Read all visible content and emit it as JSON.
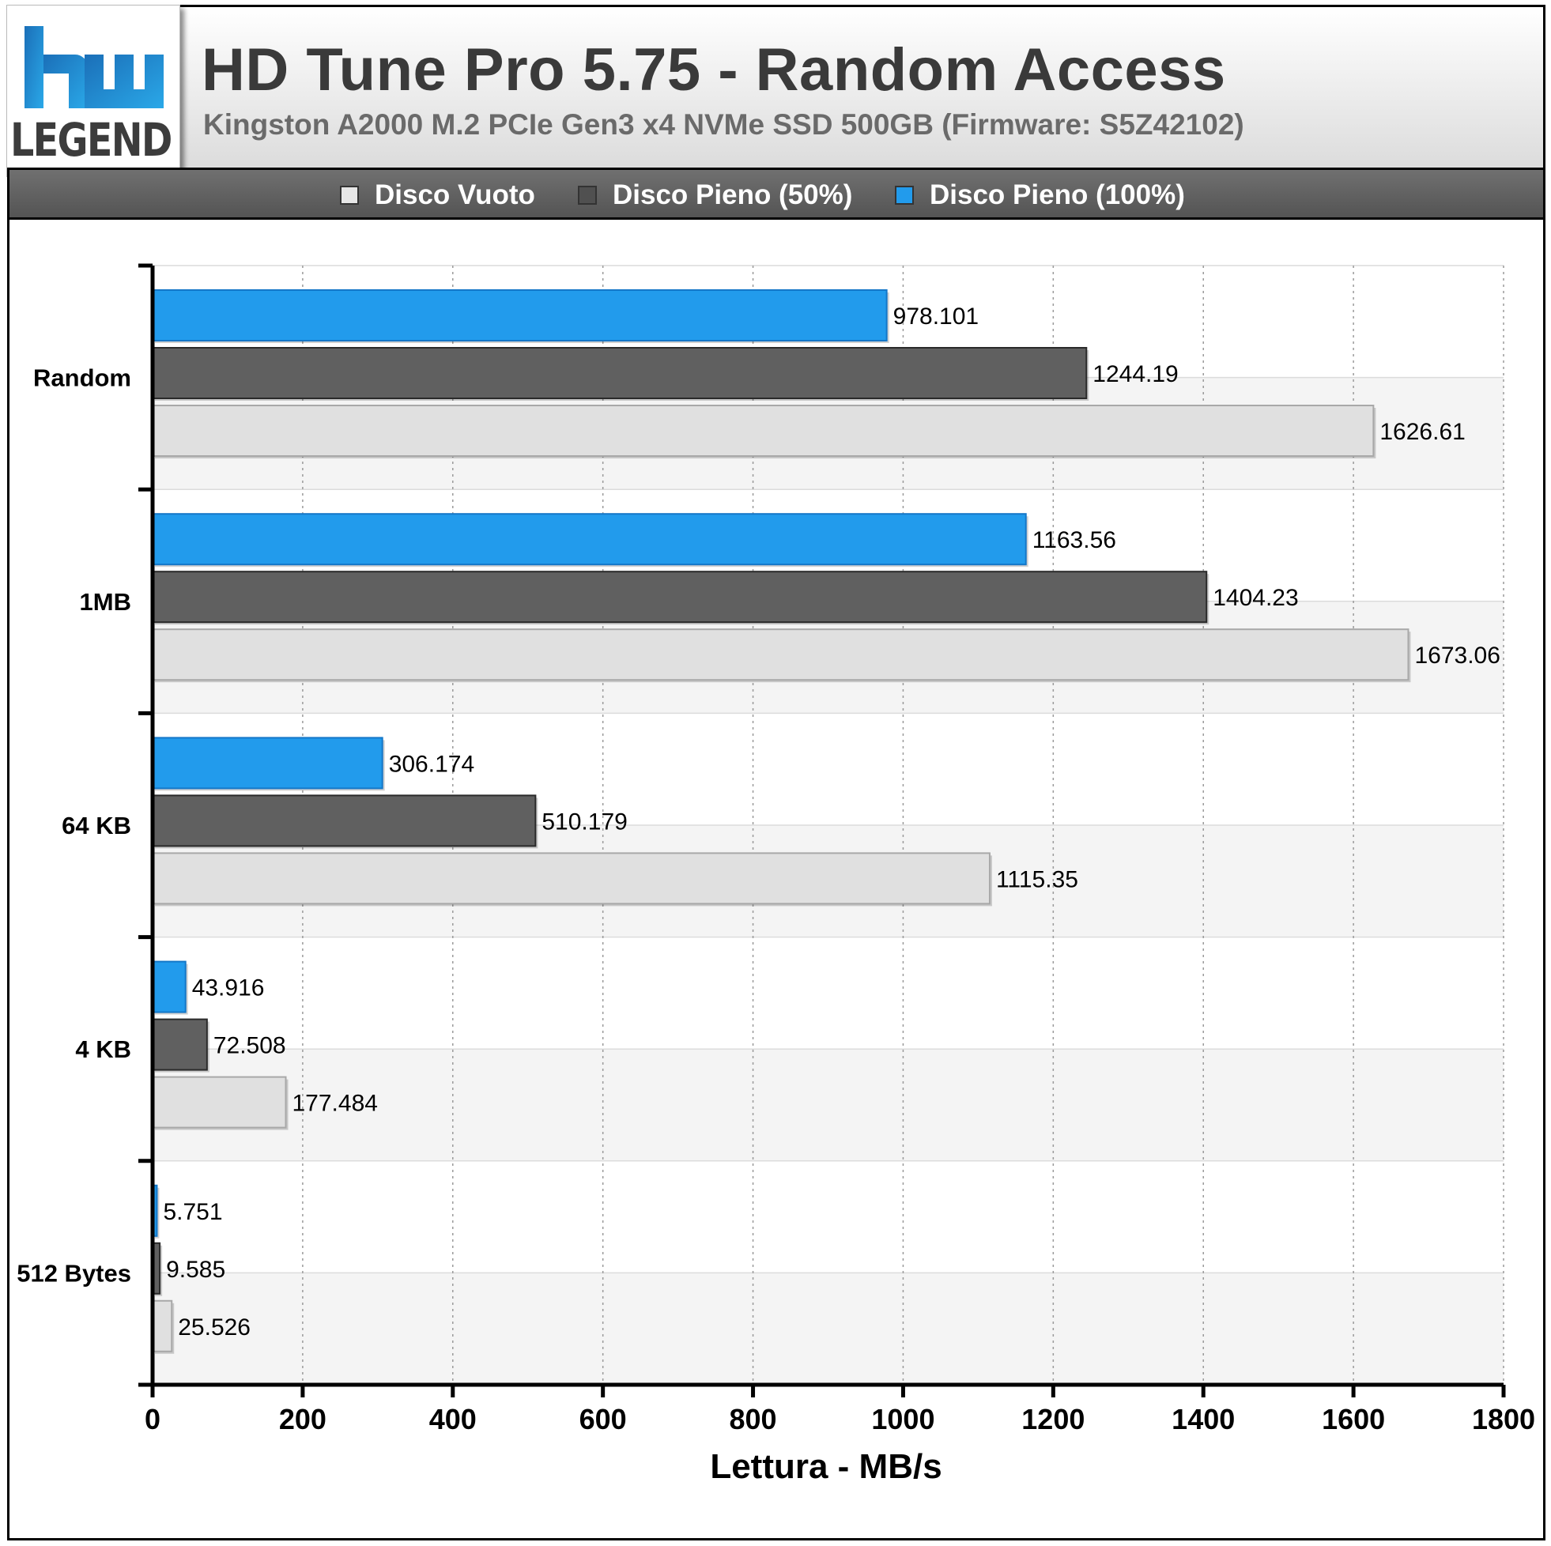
{
  "header": {
    "title": "HD Tune Pro 5.75 - Random Access",
    "subtitle": "Kingston A2000 M.2 PCIe Gen3 x4 NVMe SSD 500GB (Firmware: S5Z42102)",
    "logo_text": "LEGEND"
  },
  "legend": {
    "items": [
      {
        "label": "Disco Vuoto",
        "color": "#e0e0e0"
      },
      {
        "label": "Disco Pieno (50%)",
        "color": "#606060"
      },
      {
        "label": "Disco Pieno (100%)",
        "color": "#229bec"
      }
    ]
  },
  "chart_data": {
    "type": "bar",
    "orientation": "horizontal",
    "title": "HD Tune Pro 5.75 - Random Access",
    "subtitle": "Kingston A2000 M.2 PCIe Gen3 x4 NVMe SSD 500GB (Firmware: S5Z42102)",
    "xlabel": "Lettura - MB/s",
    "ylabel": "",
    "xlim": [
      0,
      1800
    ],
    "xticks": [
      0,
      200,
      400,
      600,
      800,
      1000,
      1200,
      1400,
      1600,
      1800
    ],
    "grid": true,
    "legend_position": "top",
    "categories": [
      "Random",
      "1MB",
      "64 KB",
      "4 KB",
      "512 Bytes"
    ],
    "series": [
      {
        "name": "Disco Pieno (100%)",
        "color": "#229bec",
        "values": [
          978.101,
          1163.56,
          306.174,
          43.916,
          5.751
        ],
        "labels": [
          "978.101",
          "1163.56",
          "306.174",
          "43.916",
          "5.751"
        ]
      },
      {
        "name": "Disco Pieno (50%)",
        "color": "#606060",
        "values": [
          1244.19,
          1404.23,
          510.179,
          72.508,
          9.585
        ],
        "labels": [
          "1244.19",
          "1404.23",
          "510.179",
          "72.508",
          "9.585"
        ]
      },
      {
        "name": "Disco Vuoto",
        "color": "#e0e0e0",
        "values": [
          1626.61,
          1673.06,
          1115.35,
          177.484,
          25.526
        ],
        "labels": [
          "1626.61",
          "1673.06",
          "1115.35",
          "177.484",
          "25.526"
        ]
      }
    ]
  }
}
